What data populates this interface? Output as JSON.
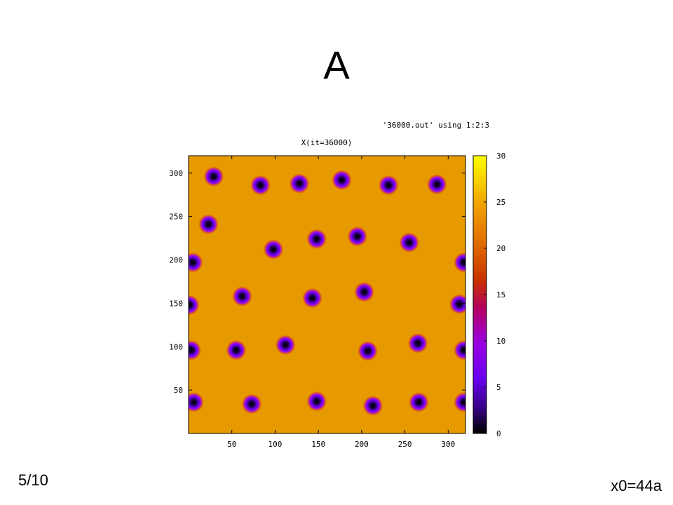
{
  "slide": {
    "title": "A",
    "page_label": "5/10",
    "note": "x0=44a"
  },
  "chart_data": {
    "type": "heatmap",
    "title": "X(it=36000)",
    "legend_label": "'36000.out' using 1:2:3",
    "xlim": [
      0,
      320
    ],
    "ylim": [
      0,
      320
    ],
    "xticks": [
      50,
      100,
      150,
      200,
      250,
      300
    ],
    "yticks": [
      50,
      100,
      150,
      200,
      250,
      300
    ],
    "colorbar": {
      "range": [
        0,
        30
      ],
      "ticks": [
        0,
        5,
        10,
        15,
        20,
        25,
        30
      ]
    },
    "background_value": 24,
    "spots_min_value": 0,
    "spots": [
      {
        "x": 29,
        "y": 296
      },
      {
        "x": 83,
        "y": 286
      },
      {
        "x": 128,
        "y": 288
      },
      {
        "x": 177,
        "y": 292
      },
      {
        "x": 231,
        "y": 286
      },
      {
        "x": 287,
        "y": 287
      },
      {
        "x": 23,
        "y": 241
      },
      {
        "x": 148,
        "y": 224
      },
      {
        "x": 195,
        "y": 227
      },
      {
        "x": 255,
        "y": 220
      },
      {
        "x": 98,
        "y": 212
      },
      {
        "x": 5,
        "y": 197
      },
      {
        "x": 318,
        "y": 197
      },
      {
        "x": 62,
        "y": 158
      },
      {
        "x": 143,
        "y": 156
      },
      {
        "x": 203,
        "y": 163
      },
      {
        "x": 313,
        "y": 149
      },
      {
        "x": 1,
        "y": 148
      },
      {
        "x": 112,
        "y": 102
      },
      {
        "x": 55,
        "y": 96
      },
      {
        "x": 207,
        "y": 95
      },
      {
        "x": 265,
        "y": 104
      },
      {
        "x": 3,
        "y": 96
      },
      {
        "x": 318,
        "y": 96
      },
      {
        "x": 6,
        "y": 36
      },
      {
        "x": 73,
        "y": 34
      },
      {
        "x": 148,
        "y": 37
      },
      {
        "x": 213,
        "y": 32
      },
      {
        "x": 266,
        "y": 36
      },
      {
        "x": 318,
        "y": 36
      }
    ]
  }
}
